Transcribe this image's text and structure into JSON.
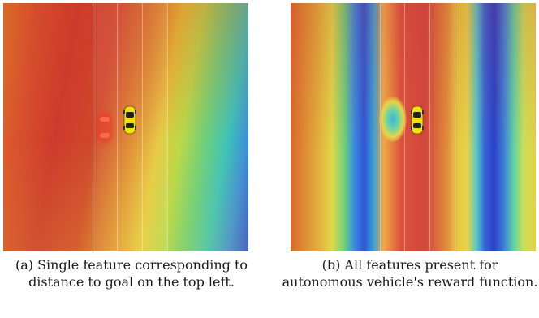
{
  "panels": [
    {
      "id": "a",
      "caption": "(a) Single feature corresponding to distance to goal on the top left."
    },
    {
      "id": "b",
      "caption": "(b) All features present for autonomous vehicle's reward function."
    }
  ],
  "colors": {
    "high": "#cf3a30",
    "mid": "#e6d44a",
    "low": "#2f4fd2",
    "car": "#f2e010"
  }
}
